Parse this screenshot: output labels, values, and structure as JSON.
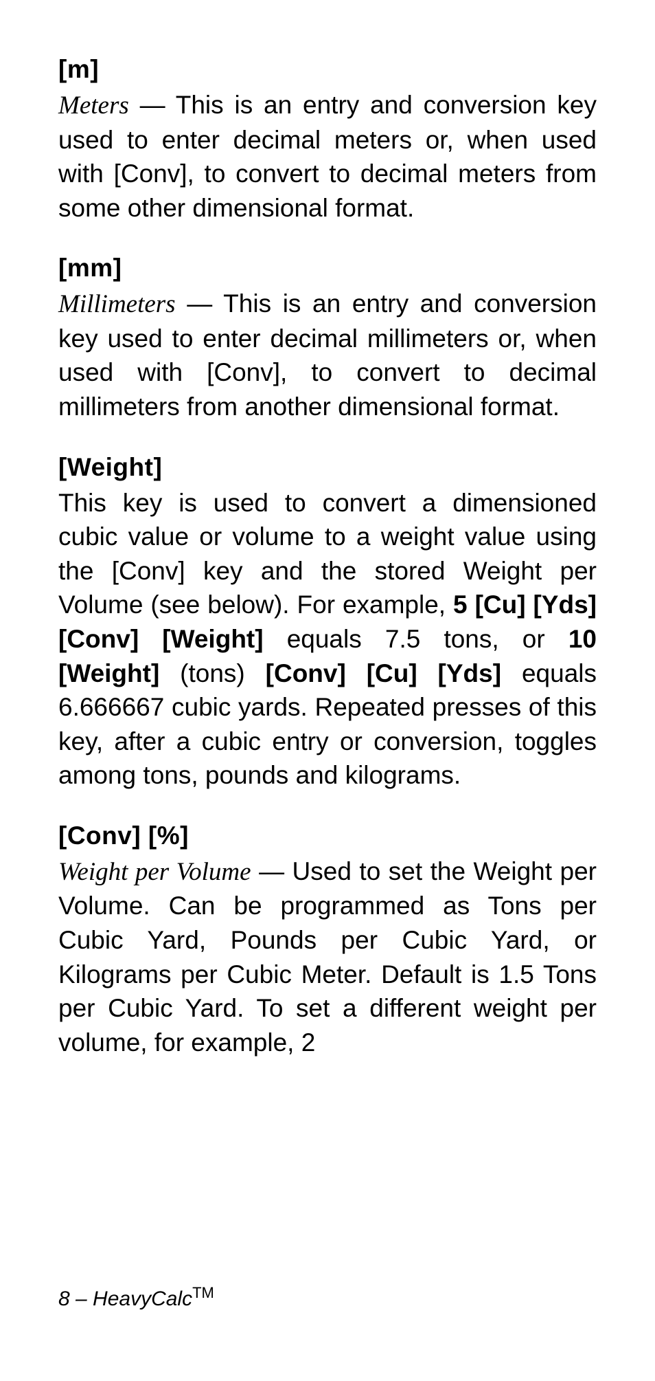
{
  "entries": [
    {
      "label": "[m]",
      "term": "Meters",
      "body_before_key": " — This is an entry and conversion key used to enter decimal meters or, when used with ",
      "inline_key": "[Conv],",
      "body_after_key": " to convert to decimal meters from some other dimensional format."
    },
    {
      "label": "[mm]",
      "term": "Millimeters",
      "body_before_key": " — This is an entry and conversion key used to enter decimal millimeters or, when used with ",
      "inline_key": "[Conv]",
      "body_after_key": ", to convert to decimal millimeters from another dimensional format."
    },
    {
      "label": "[Weight]",
      "term": "",
      "body_parts": [
        {
          "t": "plain",
          "v": "This key is used to convert a dimensioned cubic value or volume to a weight value using the "
        },
        {
          "t": "key",
          "v": "[Conv]"
        },
        {
          "t": "plain",
          "v": " key and the stored Weight per Volume (see below). For example, "
        },
        {
          "t": "keyb",
          "v": "5 [Cu] [Yds] [Conv] [Weight]"
        },
        {
          "t": "plain",
          "v": " equals 7.5 tons, or "
        },
        {
          "t": "keyb",
          "v": "10 [Weight]"
        },
        {
          "t": "plain",
          "v": " (tons) "
        },
        {
          "t": "keyb",
          "v": "[Conv] [Cu] [Yds]"
        },
        {
          "t": "plain",
          "v": " equals 6.666667 cubic yards. Repeated presses of this key, after a cubic entry or conversion, toggles among tons, pounds and kilograms."
        }
      ]
    },
    {
      "label": "[Conv] [%]",
      "term": "Weight per Volume",
      "body_before_key": " — Used to set the Weight per Volume. Can be programmed as Tons per Cubic Yard, Pounds per Cubic Yard, or Kilograms per Cubic Meter. Default is 1.5 Tons per Cubic Yard. To set a different weight per volume, for example, 2",
      "inline_key": "",
      "body_after_key": ""
    }
  ],
  "footer_page": "8 – HeavyCalc",
  "footer_tm": "TM"
}
